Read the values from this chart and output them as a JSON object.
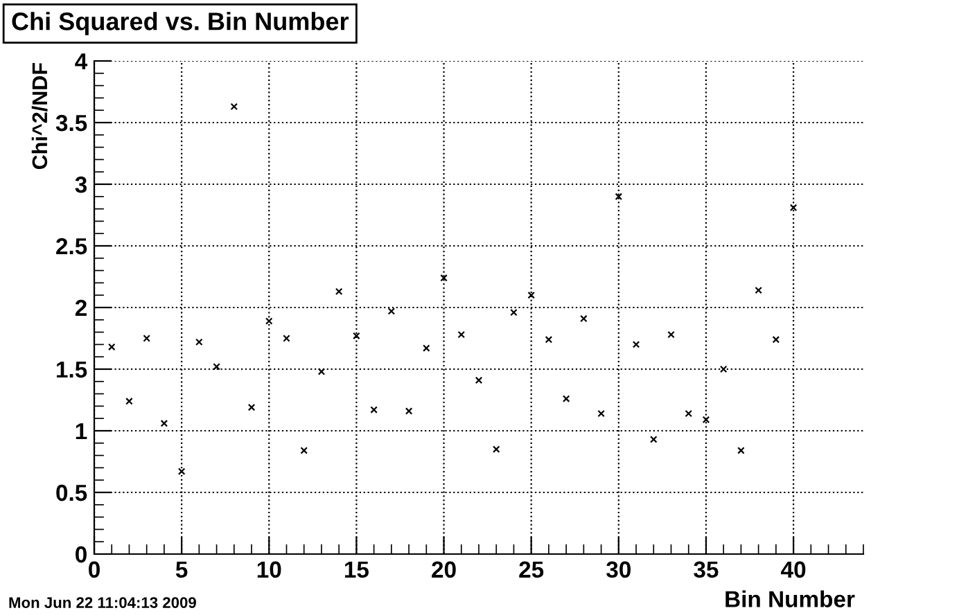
{
  "chart_data": {
    "type": "scatter",
    "title": "Chi Squared vs. Bin Number",
    "xlabel": "Bin Number",
    "ylabel": "Chi^2/NDF",
    "annotations": [
      "Mon Jun 22 11:04:13 2009"
    ],
    "x": [
      1,
      2,
      3,
      4,
      5,
      6,
      7,
      8,
      9,
      10,
      11,
      12,
      13,
      14,
      15,
      16,
      17,
      18,
      19,
      20,
      21,
      22,
      23,
      24,
      25,
      26,
      27,
      28,
      29,
      30,
      31,
      32,
      33,
      34,
      35,
      36,
      37,
      38,
      39,
      40
    ],
    "series": [
      {
        "color": "#000000",
        "values": [
          1.68,
          1.24,
          1.75,
          1.06,
          0.67,
          1.72,
          1.52,
          3.63,
          1.19,
          1.89,
          1.75,
          0.84,
          1.48,
          2.13,
          1.77,
          1.17,
          1.97,
          1.16,
          1.67,
          2.24,
          1.78,
          1.41,
          0.85,
          1.96,
          2.1,
          1.74,
          1.26,
          1.91,
          1.14,
          2.9,
          1.7,
          0.93,
          1.78,
          1.14,
          1.09,
          1.5,
          0.84,
          2.14,
          1.74,
          2.81
        ]
      }
    ],
    "xlim": [
      0,
      44
    ],
    "xticks": [
      0,
      5,
      10,
      15,
      20,
      25,
      30,
      35,
      40
    ],
    "ylim": [
      0,
      4
    ],
    "yticks": [
      0,
      0.5,
      1,
      1.5,
      2,
      2.5,
      3,
      3.5,
      4
    ],
    "grid": true,
    "marker": "cross"
  }
}
